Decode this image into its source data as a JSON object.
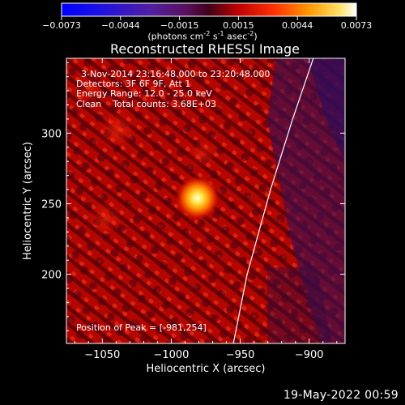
{
  "colorbar": {
    "tick_labels": [
      "-0.0073",
      "-0.0044",
      "-0.0015",
      "0.0015",
      "0.0044",
      "0.0073"
    ],
    "units_text": "(photons cm",
    "units_exp1": "-2",
    "units_mid1": " s",
    "units_exp2": "-1",
    "units_mid2": " asec",
    "units_exp3": "-2",
    "units_close": ")"
  },
  "title": "Reconstructed RHESSI Image",
  "info": {
    "line1": "3-Nov-2014 23:16:48.000 to 23:20:48.000",
    "line2": "Detectors: 3F 6F 9F, Att 1",
    "line3": "Energy Range: 12.0 - 25.0 keV",
    "line4": "Clean    Total counts: 3.68E+03"
  },
  "peak_text": "Position of Peak = [-981,254]",
  "footer_date": "19-May-2022 00:59",
  "chart_data": {
    "type": "heatmap",
    "title": "Reconstructed RHESSI Image",
    "xlabel": "Heliocentric X (arcsec)",
    "ylabel": "Heliocentric Y (arcsec)",
    "xlim": [
      -1076,
      -874
    ],
    "ylim": [
      151,
      353
    ],
    "xticks": [
      -1050,
      -1000,
      -950,
      -900
    ],
    "yticks": [
      200,
      250,
      300
    ],
    "colorbar_range": [
      -0.0073,
      0.0073
    ],
    "peak": {
      "x": -981,
      "y": 254
    },
    "limb": {
      "x": [
        -955,
        -945,
        -928,
        -912,
        -897
      ],
      "y": [
        151,
        200,
        260,
        310,
        353
      ]
    }
  }
}
